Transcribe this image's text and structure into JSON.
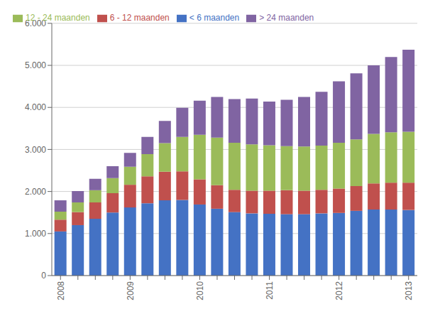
{
  "chart_data": {
    "type": "bar",
    "stacked": true,
    "categories": [
      "2008",
      null,
      null,
      null,
      "2009",
      null,
      null,
      null,
      "2010",
      null,
      null,
      null,
      "2011",
      null,
      null,
      null,
      "2012",
      null,
      null,
      null,
      "2013"
    ],
    "series": [
      {
        "name": "< 6 maanden",
        "color": "#4472C4",
        "values": [
          1050,
          1200,
          1350,
          1500,
          1620,
          1720,
          1790,
          1800,
          1690,
          1590,
          1510,
          1480,
          1470,
          1460,
          1460,
          1480,
          1490,
          1540,
          1570,
          1570,
          1560
        ]
      },
      {
        "name": "6 - 12 maanden",
        "color": "#C0504D",
        "values": [
          280,
          310,
          390,
          460,
          540,
          640,
          680,
          680,
          600,
          560,
          530,
          540,
          550,
          570,
          560,
          560,
          580,
          590,
          620,
          640,
          650
        ]
      },
      {
        "name": "12 - 24 maanden",
        "color": "#9BBB59",
        "values": [
          190,
          230,
          290,
          360,
          430,
          530,
          680,
          820,
          1060,
          1130,
          1120,
          1100,
          1080,
          1050,
          1050,
          1050,
          1090,
          1110,
          1180,
          1200,
          1210
        ]
      },
      {
        "name": "> 24 maanden",
        "color": "#8064A2",
        "values": [
          270,
          270,
          270,
          280,
          330,
          410,
          530,
          690,
          810,
          970,
          1040,
          1090,
          1040,
          1100,
          1180,
          1280,
          1460,
          1570,
          1630,
          1790,
          1950
        ]
      }
    ],
    "ylim": [
      0,
      6000
    ],
    "yticks": [
      0,
      {
        "value": 1000,
        "label": "1.000"
      },
      {
        "value": 2000,
        "label": "2.000"
      },
      {
        "value": 3000,
        "label": "3.000"
      },
      {
        "value": 4000,
        "label": "4.000"
      },
      {
        "value": 5000,
        "label": "5.000"
      },
      {
        "value": 6000,
        "label": "6.000"
      }
    ],
    "grid": true,
    "legend": "upper left"
  }
}
